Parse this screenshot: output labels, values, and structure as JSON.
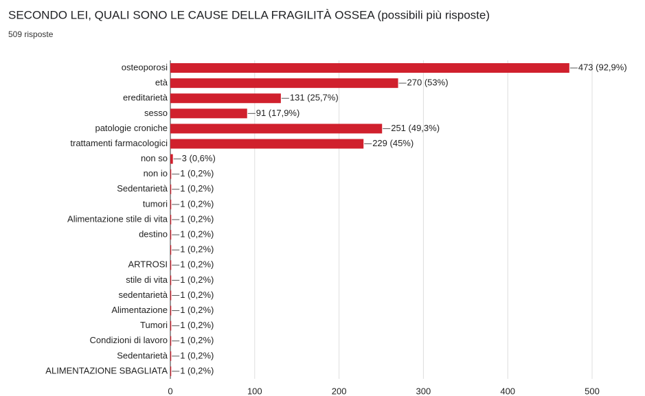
{
  "chart_data": {
    "type": "hbar",
    "title": "SECONDO LEI, QUALI SONO LE CAUSE DELLA FRAGILITÀ OSSEA (possibili più risposte)",
    "subtitle": "509 risposte",
    "categories": [
      "osteoporosi",
      "età",
      "ereditarietà",
      "sesso",
      "patologie croniche",
      "trattamenti farmacologici",
      "non so",
      "non io",
      "Sedentarietà",
      "tumori",
      "Alimentazione stile di vita",
      "destino",
      null,
      "ARTROSI",
      "stile di vita",
      "sedentarietà",
      "Alimentazione",
      "Tumori",
      "Condizioni di lavoro",
      "Sedentarietà",
      "ALIMENTAZIONE SBAGLIATA"
    ],
    "values": [
      473,
      270,
      131,
      91,
      251,
      229,
      3,
      1,
      1,
      1,
      1,
      1,
      1,
      1,
      1,
      1,
      1,
      1,
      1,
      1,
      1
    ],
    "value_labels": [
      "473 (92,9%)",
      "270 (53%)",
      "131 (25,7%)",
      "91 (17,9%)",
      "251 (49,3%)",
      "229 (45%)",
      "3 (0,6%)",
      "1 (0,2%)",
      "1 (0,2%)",
      "1 (0,2%)",
      "1 (0,2%)",
      "1 (0,2%)",
      "1 (0,2%)",
      "1 (0,2%)",
      "1 (0,2%)",
      "1 (0,2%)",
      "1 (0,2%)",
      "1 (0,2%)",
      "1 (0,2%)",
      "1 (0,2%)",
      "1 (0,2%)"
    ],
    "color": "#d0202d",
    "xlim": [
      0,
      500
    ],
    "xticks": [
      0,
      100,
      200,
      300,
      400,
      500
    ],
    "grid": true
  }
}
